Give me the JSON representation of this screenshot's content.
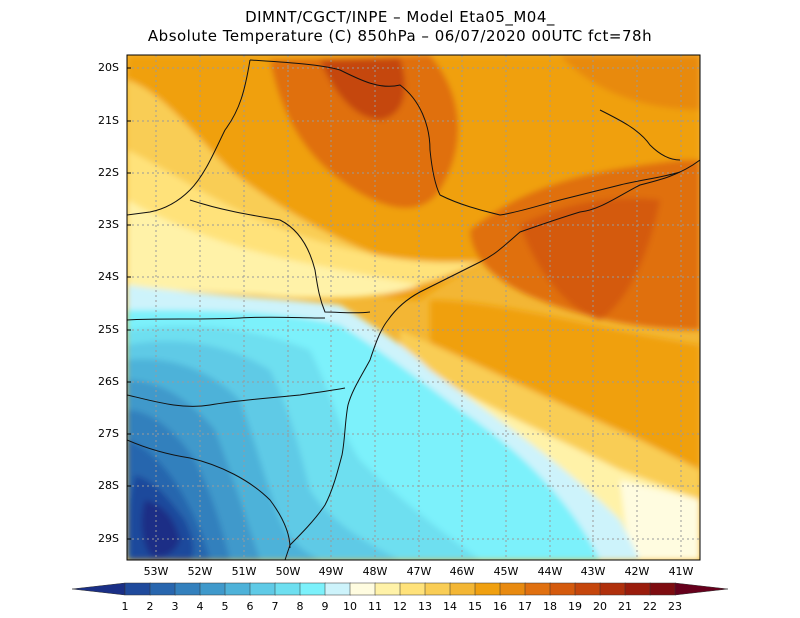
{
  "header": {
    "line1": "DIMNT/CGCT/INPE –  Model Eta05_M04_",
    "line2": "Absolute Temperature (C) 850hPa –  06/07/2020 00UTC fct=78h"
  },
  "axes": {
    "lat_labels": [
      "20S",
      "21S",
      "22S",
      "23S",
      "24S",
      "25S",
      "26S",
      "27S",
      "28S",
      "29S"
    ],
    "lon_labels": [
      "53W",
      "52W",
      "51W",
      "50W",
      "49W",
      "48W",
      "47W",
      "46W",
      "45W",
      "44W",
      "43W",
      "42W",
      "41W"
    ]
  },
  "colorbar": {
    "labels": [
      "1",
      "2",
      "3",
      "4",
      "5",
      "6",
      "7",
      "8",
      "9",
      "10",
      "11",
      "12",
      "13",
      "14",
      "15",
      "16",
      "17",
      "18",
      "19",
      "20",
      "21",
      "22",
      "23"
    ],
    "colors": [
      "#1a2f86",
      "#1f4a9c",
      "#2866ae",
      "#3380bd",
      "#3f99cb",
      "#4eb2d9",
      "#5fcae6",
      "#6edff0",
      "#7cf1fb",
      "#cdf3fb",
      "#fffce0",
      "#fff2a8",
      "#ffe27a",
      "#f9cd55",
      "#f3b634",
      "#f0a010",
      "#e88a10",
      "#e07010",
      "#d45a0d",
      "#c5460c",
      "#b0300c",
      "#9a1c0c",
      "#7e0c10",
      "#66001c"
    ]
  },
  "legend_icons": [
    "colorbar-left-arrow-icon",
    "colorbar-right-arrow-icon"
  ]
}
